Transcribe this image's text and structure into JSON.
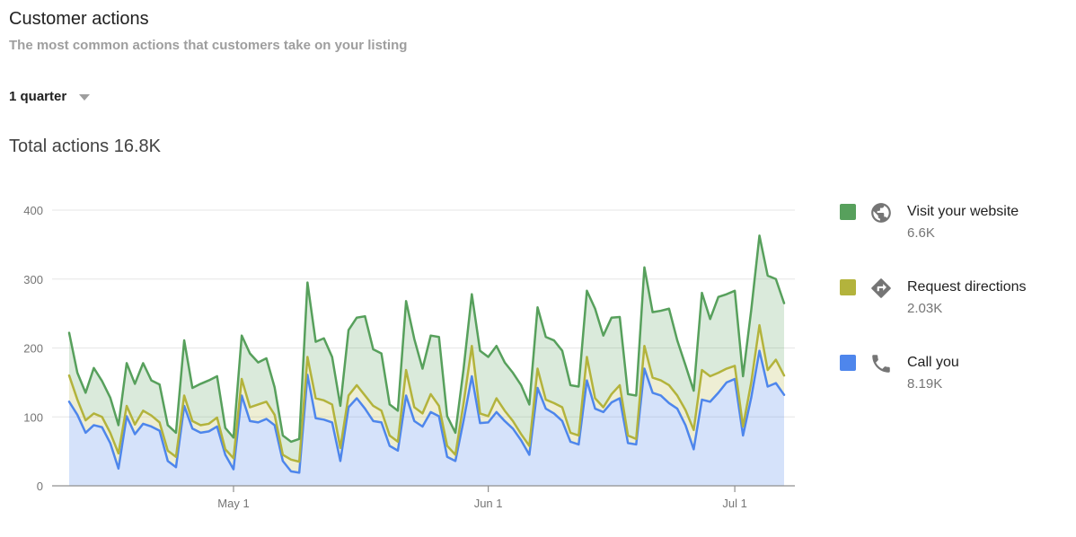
{
  "header": {
    "title": "Customer actions",
    "subtitle": "The most common actions that customers take on your listing"
  },
  "period_selector": {
    "value": "1 quarter"
  },
  "total_actions": {
    "label": "Total actions 16.8K"
  },
  "colors": {
    "call_line": "#4e86ec",
    "directions_line": "#b3b33c",
    "website_line": "#57a05c",
    "axis_text": "#757575",
    "gridline": "#e6e6e6",
    "baseline": "#8f8f8f"
  },
  "chart_data": {
    "type": "area",
    "stacked": true,
    "grid": true,
    "legend_position": "right",
    "ylim": [
      0,
      400
    ],
    "yticks": [
      0,
      100,
      200,
      300,
      400
    ],
    "xticks": [
      {
        "label": "May 1",
        "index": 20
      },
      {
        "label": "Jun 1",
        "index": 51
      },
      {
        "label": "Jul 1",
        "index": 81
      }
    ],
    "series": [
      {
        "name": "Call you",
        "total_label": "8.19K",
        "icon": "phone-icon",
        "color": "#4e86ec",
        "fill": "rgba(78,134,236,0.24)",
        "values": [
          122,
          103,
          77,
          88,
          85,
          62,
          25,
          101,
          75,
          90,
          86,
          80,
          36,
          27,
          116,
          83,
          77,
          79,
          86,
          45,
          24,
          131,
          94,
          92,
          97,
          88,
          36,
          21,
          19,
          161,
          98,
          96,
          92,
          36,
          114,
          127,
          112,
          94,
          92,
          58,
          51,
          131,
          94,
          86,
          107,
          101,
          42,
          36,
          95,
          159,
          91,
          92,
          107,
          94,
          83,
          66,
          45,
          142,
          112,
          105,
          94,
          64,
          60,
          153,
          112,
          107,
          121,
          127,
          62,
          60,
          170,
          135,
          131,
          120,
          112,
          88,
          53,
          125,
          122,
          135,
          150,
          155,
          73,
          128,
          196,
          144,
          149,
          132
        ]
      },
      {
        "name": "Request directions",
        "total_label": "2.03K",
        "icon": "directions-icon",
        "color": "#b3b33c",
        "fill": "rgba(179,179,60,0.22)",
        "values": [
          38,
          22,
          18,
          17,
          15,
          15,
          22,
          15,
          14,
          19,
          16,
          12,
          15,
          15,
          15,
          11,
          11,
          11,
          13,
          8,
          16,
          24,
          20,
          26,
          25,
          15,
          9,
          17,
          16,
          26,
          29,
          28,
          26,
          19,
          17,
          19,
          19,
          22,
          17,
          15,
          13,
          37,
          20,
          19,
          26,
          15,
          16,
          9,
          25,
          44,
          14,
          9,
          20,
          15,
          11,
          9,
          13,
          28,
          13,
          15,
          20,
          13,
          13,
          34,
          15,
          7,
          12,
          19,
          11,
          8,
          33,
          22,
          22,
          26,
          19,
          22,
          28,
          43,
          37,
          29,
          20,
          19,
          13,
          22,
          37,
          24,
          34,
          28
        ]
      },
      {
        "name": "Visit your website",
        "total_label": "6.6K",
        "icon": "globe-icon",
        "color": "#57a05c",
        "fill": "rgba(87,160,92,0.22)",
        "values": [
          62,
          39,
          40,
          66,
          52,
          51,
          41,
          62,
          59,
          69,
          51,
          55,
          37,
          35,
          80,
          48,
          60,
          63,
          60,
          31,
          30,
          63,
          78,
          61,
          63,
          40,
          28,
          26,
          33,
          108,
          82,
          90,
          69,
          61,
          95,
          98,
          115,
          82,
          83,
          45,
          45,
          100,
          99,
          65,
          85,
          100,
          43,
          32,
          50,
          75,
          91,
          86,
          76,
          70,
          70,
          71,
          60,
          89,
          91,
          91,
          82,
          69,
          71,
          96,
          130,
          104,
          111,
          99,
          60,
          63,
          114,
          95,
          101,
          111,
          80,
          65,
          57,
          112,
          83,
          110,
          108,
          109,
          73,
          105,
          130,
          137,
          117,
          105
        ]
      }
    ]
  }
}
